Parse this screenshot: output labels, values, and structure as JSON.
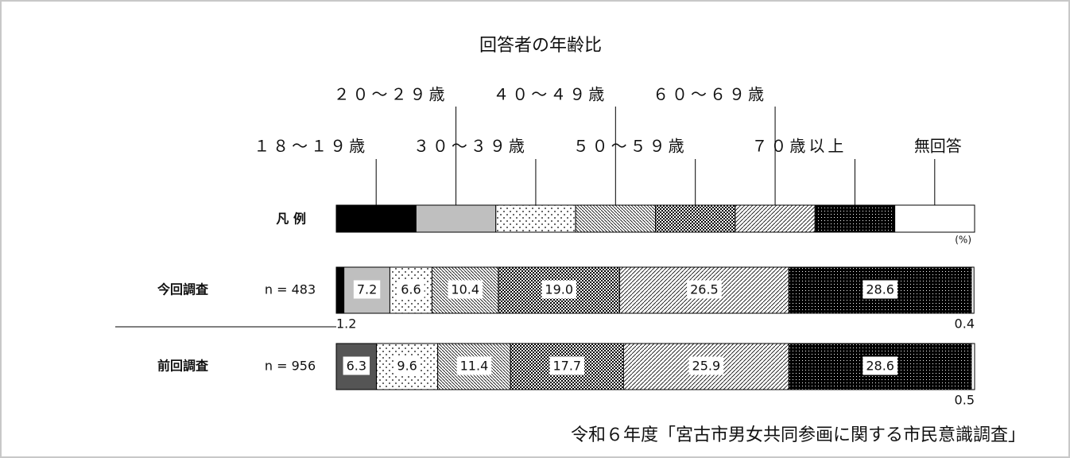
{
  "chart_data": {
    "type": "stacked-bar",
    "title": "回答者の年齢比",
    "categories": [
      "今回調査",
      "前回調査"
    ],
    "sample_sizes": [
      "n = 483",
      "n = 956"
    ],
    "legend_label": "凡 例",
    "unit_label": "(%)",
    "source": "令和６年度「宮古市男女共同参画に関する市民意識調査」",
    "xlim": [
      0,
      100
    ],
    "series": [
      {
        "name": "１８～１９歳",
        "color": "#000000",
        "values": [
          1.2,
          null
        ]
      },
      {
        "name": "２０～２９歳",
        "colors": [
          "#bfbfbf",
          "#555555"
        ],
        "values": [
          7.2,
          6.3
        ]
      },
      {
        "name": "３０～３９歳",
        "pattern": "dots",
        "values": [
          6.6,
          9.6
        ]
      },
      {
        "name": "４０～４９歳",
        "pattern": "backslash",
        "values": [
          10.4,
          11.4
        ]
      },
      {
        "name": "５０～５９歳",
        "pattern": "checker",
        "values": [
          19,
          17.7
        ],
        "value_labels": [
          "19.0",
          "17.7"
        ]
      },
      {
        "name": "６０～６９歳",
        "pattern": "slash",
        "values": [
          26.5,
          25.9
        ]
      },
      {
        "name": "７０歳以上",
        "pattern": "darkdots",
        "values": [
          28.6,
          28.6
        ]
      },
      {
        "name": "無回答",
        "color": "#ffffff",
        "values": [
          0.4,
          0.5
        ]
      }
    ]
  }
}
